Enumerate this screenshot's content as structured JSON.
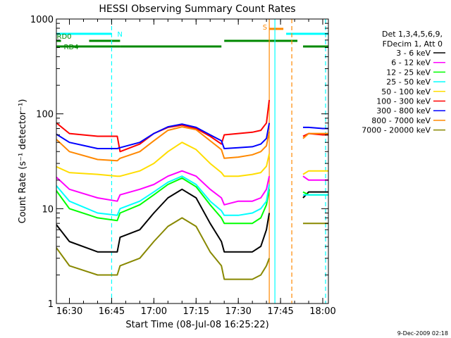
{
  "chart_data": {
    "type": "line",
    "title": "HESSI Observing Summary Count Rates",
    "xlabel": "Start Time (08-Jul-08 16:25:22)",
    "ylabel": "Count Rate (s⁻¹ detector⁻¹)",
    "yscale": "log",
    "ylim": [
      1,
      1000
    ],
    "xlim": [
      "16:25:22",
      "18:02"
    ],
    "x_ticks": [
      "16:30",
      "16:45",
      "17:00",
      "17:15",
      "17:30",
      "17:45",
      "18:00"
    ],
    "y_ticks": [
      "1",
      "10",
      "100",
      "1000"
    ],
    "grid": false,
    "legend_position": "right",
    "legend_header": [
      "Det 1,3,4,5,6,9,",
      "FDecim 1, Att 0"
    ],
    "times": [
      "16:25",
      "16:30",
      "16:40",
      "16:47",
      "16:48",
      "16:55",
      "17:00",
      "17:05",
      "17:10",
      "17:15",
      "17:20",
      "17:24",
      "17:25",
      "17:30",
      "17:35",
      "17:38",
      "17:40",
      "17:41",
      "17:43",
      "17:53",
      "17:55",
      "18:00",
      "18:02"
    ],
    "series": [
      {
        "name": "3 - 6 keV",
        "color": "#000000",
        "values": [
          7,
          4.5,
          3.5,
          3.5,
          5,
          6,
          9,
          13,
          16,
          13,
          7,
          4.5,
          3.5,
          3.5,
          3.5,
          4,
          6,
          9,
          null,
          13,
          15,
          15,
          15
        ]
      },
      {
        "name": "6 - 12 keV",
        "color": "#ff00ff",
        "values": [
          22,
          16,
          13,
          12,
          14,
          16,
          18,
          22,
          25,
          22,
          16,
          13,
          11,
          12,
          12,
          13,
          16,
          22,
          null,
          22,
          20,
          20,
          20
        ]
      },
      {
        "name": "12 - 25 keV",
        "color": "#00ff00",
        "values": [
          16,
          10,
          8,
          7.5,
          9,
          11,
          14,
          18,
          21,
          17,
          11,
          8,
          7,
          7,
          7,
          8,
          11,
          16,
          null,
          15,
          14,
          14,
          14
        ]
      },
      {
        "name": "25 - 50 keV",
        "color": "#00ffff",
        "values": [
          18,
          12,
          9,
          8.5,
          10,
          12,
          15,
          19,
          22,
          18,
          12,
          9.5,
          8.5,
          8.5,
          9,
          10,
          12,
          18,
          null,
          14,
          14,
          14,
          14
        ]
      },
      {
        "name": "50 - 100 keV",
        "color": "#ffdd00",
        "values": [
          28,
          24,
          23,
          22,
          22,
          25,
          30,
          40,
          50,
          42,
          30,
          24,
          22,
          22,
          23,
          24,
          28,
          38,
          null,
          23,
          25,
          25,
          25
        ]
      },
      {
        "name": "100 - 300 keV",
        "color": "#ff0000",
        "values": [
          82,
          62,
          58,
          58,
          40,
          48,
          62,
          72,
          76,
          70,
          58,
          48,
          60,
          62,
          64,
          67,
          80,
          140,
          null,
          58,
          62,
          60,
          60
        ]
      },
      {
        "name": "300 - 800 keV",
        "color": "#0000ff",
        "values": [
          62,
          50,
          43,
          43,
          44,
          50,
          62,
          73,
          78,
          72,
          60,
          52,
          43,
          44,
          45,
          48,
          55,
          80,
          null,
          72,
          72,
          70,
          70
        ]
      },
      {
        "name": "800 - 7000 keV",
        "color": "#ff8800",
        "values": [
          55,
          40,
          33,
          32,
          34,
          40,
          52,
          67,
          73,
          68,
          52,
          42,
          34,
          35,
          37,
          40,
          46,
          65,
          null,
          55,
          62,
          62,
          62
        ]
      },
      {
        "name": "7000 - 20000 keV",
        "color": "#888800",
        "values": [
          4,
          2.5,
          2,
          2,
          2.5,
          3,
          4.5,
          6.5,
          8,
          6.5,
          3.5,
          2.5,
          1.8,
          1.8,
          1.8,
          2,
          2.5,
          3,
          null,
          7,
          7,
          7,
          7
        ]
      }
    ],
    "state_bars": [
      {
        "label": "N",
        "color": "#00ffff",
        "segments": [
          [
            "16:25",
            "16:45"
          ],
          [
            "17:47",
            "18:02"
          ]
        ]
      },
      {
        "label": "S",
        "color": "#ff8800",
        "segments": [
          [
            "17:41",
            "17:46"
          ]
        ]
      },
      {
        "label": "RD0",
        "color": "#008800",
        "segments": [
          [
            "16:25",
            "16:27"
          ],
          [
            "16:37",
            "16:48"
          ],
          [
            "17:25",
            "17:51"
          ]
        ]
      },
      {
        "label": "RD4",
        "color": "#008800",
        "segments": [
          [
            "16:25",
            "16:48"
          ],
          [
            "16:48",
            "17:24"
          ],
          [
            "17:53",
            "18:02"
          ]
        ]
      }
    ],
    "vertical_markers": [
      {
        "time": "16:45",
        "color": "#00ffff",
        "style": "dashed"
      },
      {
        "time": "17:41",
        "color": "#ff8800",
        "style": "solid"
      },
      {
        "time": "17:43",
        "color": "#00ffff",
        "style": "solid"
      },
      {
        "time": "17:49",
        "color": "#ff8800",
        "style": "dashed"
      },
      {
        "time": "18:01",
        "color": "#00ffff",
        "style": "dashed"
      }
    ]
  },
  "footer_date": "9-Dec-2009 02:18"
}
